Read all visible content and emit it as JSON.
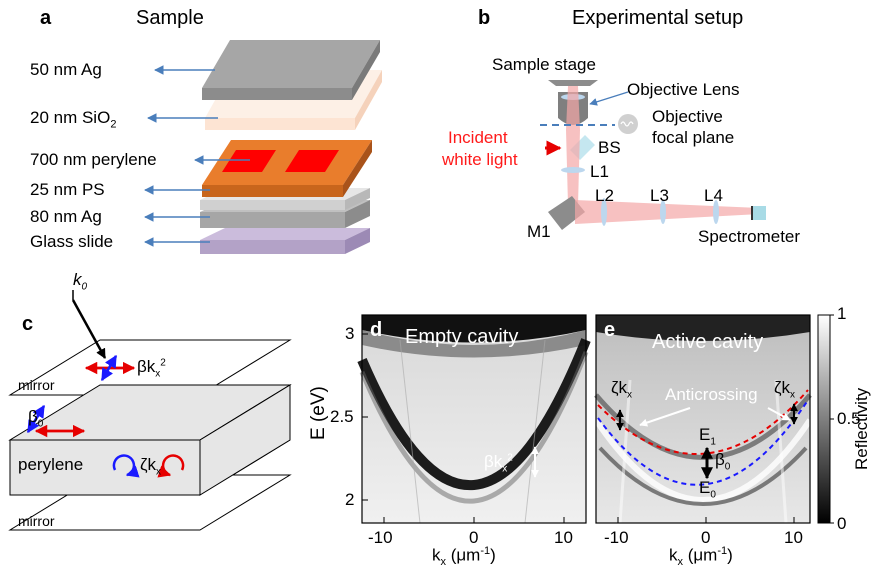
{
  "panel_a": {
    "letter": "a",
    "title": "Sample",
    "layers": [
      {
        "label": "50 nm Ag"
      },
      {
        "label": "20 nm SiO",
        "sub": "2"
      },
      {
        "label": "700 nm perylene"
      },
      {
        "label": "25 nm PS"
      },
      {
        "label": "80 nm Ag"
      },
      {
        "label": "Glass slide"
      }
    ],
    "colors": {
      "ag": "#a6a6a6",
      "sio2": "#fde4d3",
      "perylene": "#e97d2c",
      "pattern": "#ff0000",
      "ps": "#d9d9d9",
      "glass": "#b3a2c7",
      "arrow": "#4a7ebb"
    }
  },
  "panel_b": {
    "letter": "b",
    "title": "Experimental setup",
    "labels": {
      "sample_stage": "Sample stage",
      "objective_lens": "Objective Lens",
      "objective": "Objective",
      "focal_plane": "focal plane",
      "incident": "Incident",
      "white_light": "white light",
      "bs": "BS",
      "l1": "L1",
      "l2": "L2",
      "l3": "L3",
      "l4": "L4",
      "m1": "M1",
      "spectrometer": "Spectrometer"
    }
  },
  "panel_c": {
    "letter": "c",
    "k0": "k",
    "k0_sub": "0",
    "beta_k": "βk",
    "beta_k_sub": "x",
    "beta_k_sup": "2",
    "beta0": "β",
    "beta0_sub": "0",
    "zeta": "ζk",
    "zeta_sub": "x",
    "mirror_top": "mirror",
    "perylene": "perylene",
    "mirror_bottom": "mirror"
  },
  "panel_d": {
    "letter": "d",
    "title": "Empty cavity",
    "ylabel": "E (eV)",
    "xlabel": "k",
    "xlabel_sub": "x",
    "xlabel_unit": " (μm",
    "xlabel_unit_sup": "-1",
    "xlabel_close": ")",
    "yticks": [
      "2",
      "2.5",
      "3"
    ],
    "xticks": [
      "-10",
      "0",
      "10"
    ],
    "annotation": "βk",
    "annotation_sub": "x",
    "annotation_sup": "2"
  },
  "panel_e": {
    "letter": "e",
    "title": "Active cavity",
    "xticks": [
      "-10",
      "0",
      "10"
    ],
    "zeta": "ζk",
    "zeta_sub": "x",
    "anticrossing": "Anticrossing",
    "e1": "E",
    "e1_sub": "1",
    "e0": "E",
    "e0_sub": "0",
    "beta0": "β",
    "beta0_sub": "0"
  },
  "colorbar": {
    "label": "Reflectivity",
    "ticks": [
      "1",
      "0.5",
      "0"
    ]
  }
}
